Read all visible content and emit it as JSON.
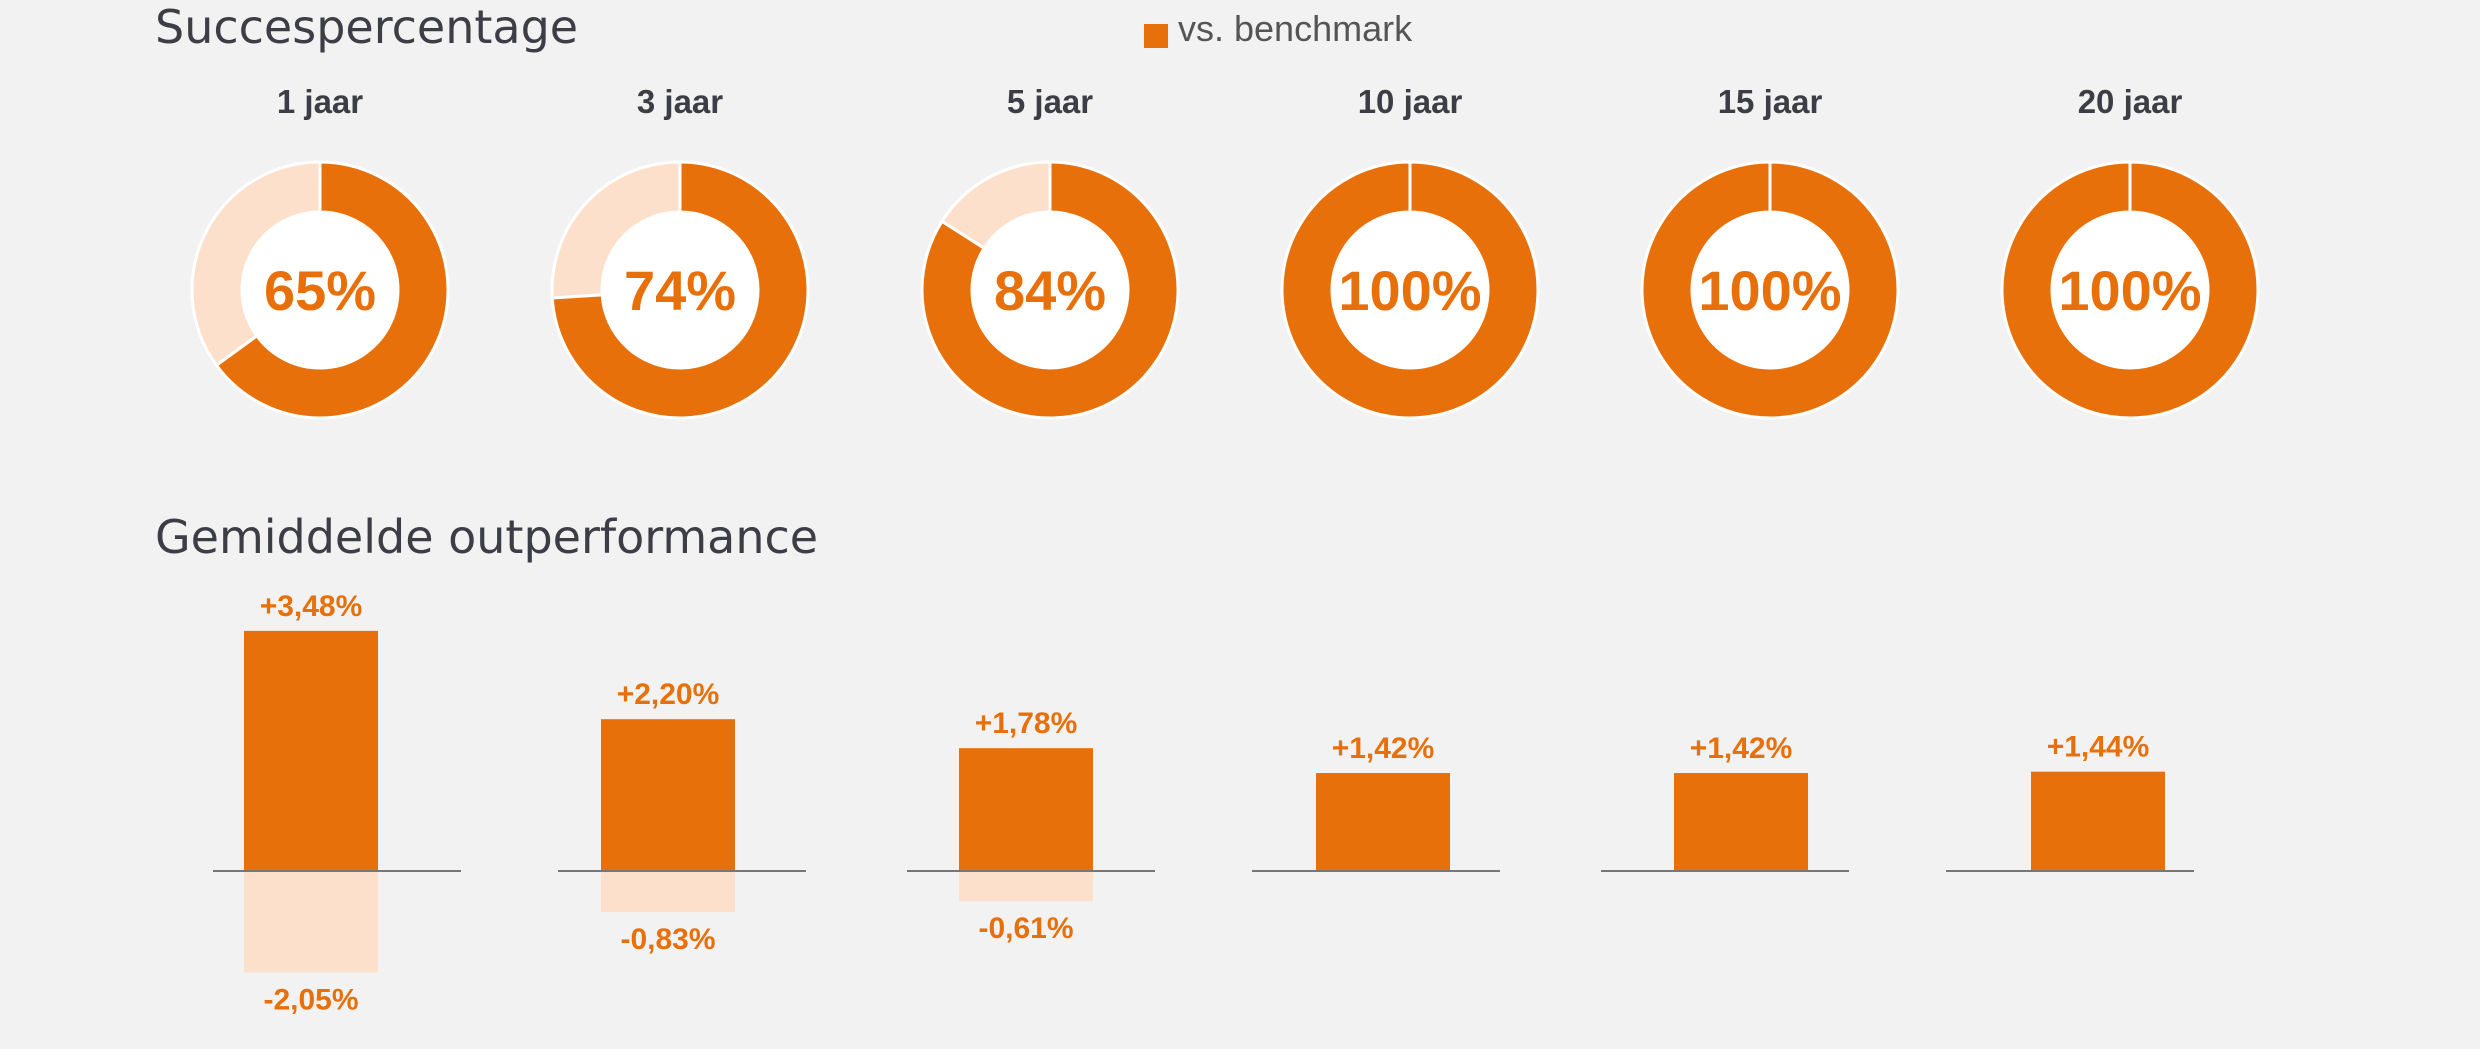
{
  "colors": {
    "accent": "#e8700a",
    "accent_light": "#fde0cc",
    "baseline": "#777777",
    "title": "#3d3d46",
    "background": "#f2f2f2"
  },
  "legend": {
    "label": "vs. benchmark"
  },
  "chart_data": [
    {
      "type": "pie",
      "title": "Succespercentage",
      "categories": [
        "1 jaar",
        "3 jaar",
        "5 jaar",
        "10 jaar",
        "15 jaar",
        "20 jaar"
      ],
      "values": [
        65,
        74,
        84,
        100,
        100,
        100
      ],
      "value_labels": [
        "65%",
        "74%",
        "84%",
        "100%",
        "100%",
        "100%"
      ]
    },
    {
      "type": "bar",
      "title": "Gemiddelde outperformance",
      "categories": [
        "1 jaar",
        "3 jaar",
        "5 jaar",
        "10 jaar",
        "15 jaar",
        "20 jaar"
      ],
      "series": [
        {
          "values": [
            3.48,
            2.2,
            1.78,
            1.42,
            1.42,
            1.44
          ],
          "labels": [
            "+3,48%",
            "+2,20%",
            "+1,78%",
            "+1,42%",
            "+1,42%",
            "+1,44%"
          ]
        },
        {
          "values": [
            -2.05,
            -0.83,
            -0.61,
            null,
            null,
            null
          ],
          "labels": [
            "-2,05%",
            "-0,83%",
            "-0,61%",
            "",
            "",
            ""
          ]
        }
      ]
    }
  ]
}
